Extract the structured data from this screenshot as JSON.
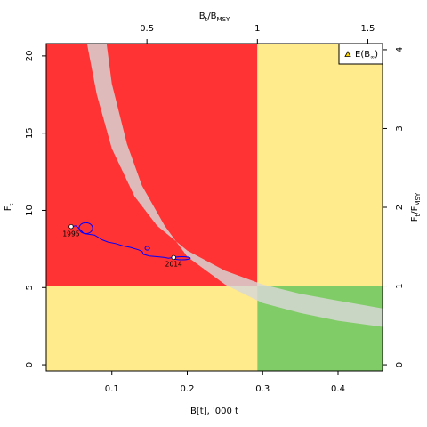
{
  "chart_data": {
    "type": "line",
    "colors": {
      "red_zone": "#ff3333",
      "yellow_zone": "#ffea8c",
      "green_zone": "#80cc66",
      "uncertainty_band": "#d8d8d8",
      "trajectory": "#0000ff",
      "point_fill": "#ffffff",
      "legend_marker": "#ffd700"
    },
    "x_axis": {
      "label": "B[t], '000 t",
      "lim": [
        0.013,
        0.459
      ],
      "ticks": [
        0.1,
        0.2,
        0.3,
        0.4
      ],
      "tick_labels": [
        "0.1",
        "0.2",
        "0.3",
        "0.4"
      ]
    },
    "y_axis": {
      "label": "F",
      "label_sub": "t",
      "lim": [
        -0.4,
        20.8
      ],
      "ticks": [
        0,
        5,
        10,
        15,
        20
      ],
      "tick_labels": [
        "0",
        "5",
        "10",
        "15",
        "20"
      ]
    },
    "top_axis": {
      "label_base": "B",
      "label_sub1": "t",
      "label_sep": "/B",
      "label_sub2": "MSY",
      "ticks_b": [
        0.1465,
        0.293,
        0.4395
      ],
      "tick_labels": [
        "0.5",
        "1",
        "1.5"
      ]
    },
    "right_axis": {
      "label_base": "F",
      "label_sub1": "t",
      "label_sep": "/F",
      "label_sub2": "MSY",
      "ticks_f": [
        0,
        5.1,
        10.2,
        15.3,
        20.4
      ],
      "tick_labels": [
        "0",
        "1",
        "2",
        "3",
        "4"
      ]
    },
    "reference_points": {
      "B_msy": 0.293,
      "F_msy": 5.1
    },
    "uncertainty_band": {
      "upper": [
        [
          0.067,
          20.8
        ],
        [
          0.08,
          17.5
        ],
        [
          0.1,
          14.0
        ],
        [
          0.13,
          10.9
        ],
        [
          0.16,
          9.0
        ],
        [
          0.2,
          7.4
        ],
        [
          0.25,
          6.1
        ],
        [
          0.3,
          5.2
        ],
        [
          0.35,
          4.6
        ],
        [
          0.4,
          4.15
        ],
        [
          0.459,
          3.65
        ]
      ],
      "lower": [
        [
          0.093,
          20.8
        ],
        [
          0.1,
          18.2
        ],
        [
          0.12,
          14.3
        ],
        [
          0.14,
          11.6
        ],
        [
          0.17,
          9.0
        ],
        [
          0.2,
          7.0
        ],
        [
          0.25,
          5.2
        ],
        [
          0.3,
          4.0
        ],
        [
          0.35,
          3.35
        ],
        [
          0.4,
          2.85
        ],
        [
          0.459,
          2.45
        ]
      ]
    },
    "trajectory": [
      [
        0.046,
        8.95
      ],
      [
        0.052,
        9.0
      ],
      [
        0.057,
        8.8
      ],
      [
        0.063,
        8.5
      ],
      [
        0.07,
        8.45
      ],
      [
        0.077,
        8.4
      ],
      [
        0.082,
        8.25
      ],
      [
        0.087,
        8.1
      ],
      [
        0.095,
        7.95
      ],
      [
        0.105,
        7.85
      ],
      [
        0.115,
        7.7
      ],
      [
        0.125,
        7.6
      ],
      [
        0.135,
        7.45
      ],
      [
        0.14,
        7.35
      ],
      [
        0.142,
        7.15
      ],
      [
        0.15,
        7.05
      ],
      [
        0.16,
        7.0
      ],
      [
        0.17,
        6.95
      ],
      [
        0.175,
        6.9
      ],
      [
        0.182,
        6.95
      ]
    ],
    "loops": [
      {
        "cx": 0.0655,
        "cy": 8.85,
        "rx": 0.009,
        "ry": 0.35
      },
      {
        "cx": 0.193,
        "cy": 6.9,
        "rx": 0.011,
        "ry": 0.1
      },
      {
        "cx": 0.147,
        "cy": 7.55,
        "rx": 0.003,
        "ry": 0.12
      }
    ],
    "start_point": {
      "x": 0.046,
      "y": 8.95,
      "label": "1995"
    },
    "end_point": {
      "x": 0.182,
      "y": 6.95,
      "label": "2014"
    },
    "legend": {
      "position": "top-right",
      "label_base": "E(B",
      "label_sub": "∞",
      "label_tail": ")"
    }
  }
}
